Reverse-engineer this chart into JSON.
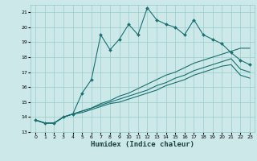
{
  "xlabel": "Humidex (Indice chaleur)",
  "bg_color": "#cce8e8",
  "grid_color": "#99cccc",
  "line_color": "#1a7070",
  "x_values": [
    0,
    1,
    2,
    3,
    4,
    5,
    6,
    7,
    8,
    9,
    10,
    11,
    12,
    13,
    14,
    15,
    16,
    17,
    18,
    19,
    20,
    21,
    22,
    23
  ],
  "main_y": [
    13.8,
    13.6,
    13.6,
    14.0,
    14.2,
    15.6,
    16.5,
    19.5,
    18.5,
    19.2,
    20.2,
    19.5,
    21.3,
    20.5,
    20.2,
    20.0,
    19.5,
    20.5,
    19.5,
    19.2,
    18.9,
    18.3,
    17.8,
    17.5
  ],
  "line2_y": [
    13.8,
    13.6,
    13.6,
    14.0,
    14.2,
    14.4,
    14.6,
    14.9,
    15.1,
    15.4,
    15.6,
    15.9,
    16.2,
    16.5,
    16.8,
    17.0,
    17.3,
    17.6,
    17.8,
    18.0,
    18.2,
    18.4,
    18.6,
    18.6
  ],
  "line3_y": [
    13.8,
    13.6,
    13.6,
    14.0,
    14.2,
    14.4,
    14.6,
    14.8,
    15.0,
    15.2,
    15.4,
    15.6,
    15.8,
    16.1,
    16.3,
    16.6,
    16.8,
    17.1,
    17.3,
    17.5,
    17.7,
    17.9,
    17.2,
    17.0
  ],
  "line4_y": [
    13.8,
    13.6,
    13.6,
    14.0,
    14.2,
    14.3,
    14.5,
    14.7,
    14.9,
    15.0,
    15.2,
    15.4,
    15.6,
    15.8,
    16.1,
    16.3,
    16.5,
    16.8,
    17.0,
    17.2,
    17.4,
    17.5,
    16.8,
    16.6
  ],
  "ylim": [
    13,
    21.5
  ],
  "xlim": [
    -0.5,
    23.5
  ],
  "yticks": [
    13,
    14,
    15,
    16,
    17,
    18,
    19,
    20,
    21
  ],
  "xticks": [
    0,
    1,
    2,
    3,
    4,
    5,
    6,
    7,
    8,
    9,
    10,
    11,
    12,
    13,
    14,
    15,
    16,
    17,
    18,
    19,
    20,
    21,
    22,
    23
  ],
  "xlabel_fontsize": 6.5,
  "tick_fontsize": 4.5
}
